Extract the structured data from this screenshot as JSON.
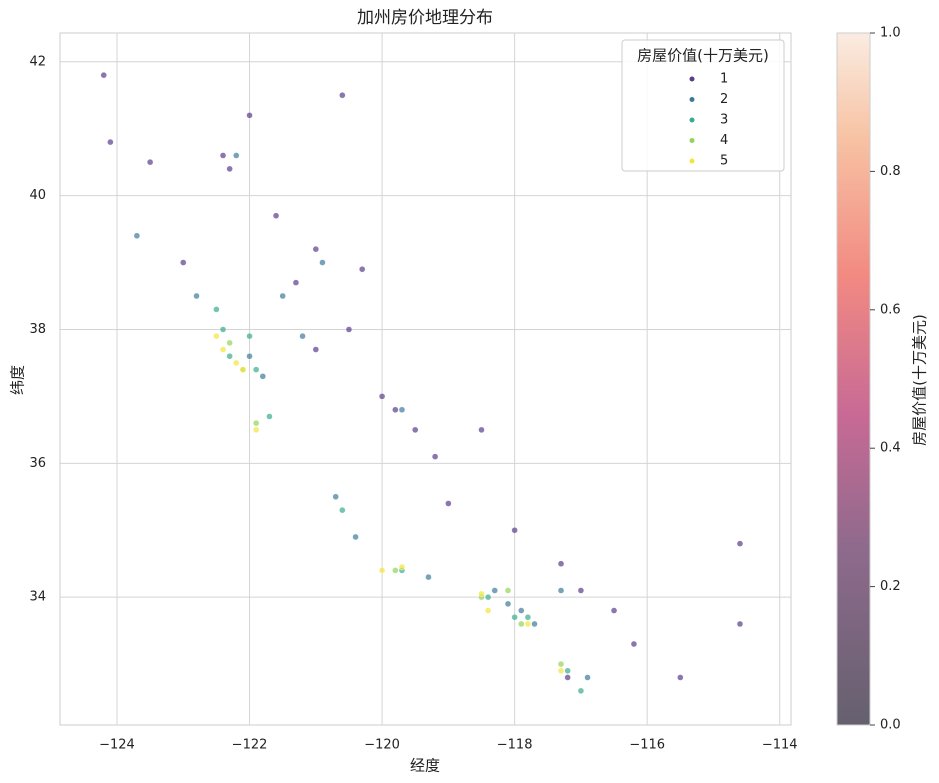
{
  "chart_data": {
    "type": "scatter",
    "title": "加州房价地理分布",
    "x_label": "经度",
    "y_label": "纬度",
    "xlim": [
      -124.86,
      -113.83
    ],
    "ylim": [
      32.09,
      42.43
    ],
    "xticks": [
      {
        "value": -124,
        "label": "−124"
      },
      {
        "value": -122,
        "label": "−122"
      },
      {
        "value": -120,
        "label": "−120"
      },
      {
        "value": -118,
        "label": "−118"
      },
      {
        "value": -116,
        "label": "−116"
      },
      {
        "value": -114,
        "label": "−114"
      }
    ],
    "yticks": [
      34,
      36,
      38,
      40,
      42
    ],
    "grid": true,
    "legend_title": "房屋价值(十万美元)",
    "legend_position": "upper right",
    "series": [
      {
        "name": "1",
        "color": "#5a3d8a",
        "x": [
          -124.2,
          -124.1,
          -123.5,
          -122.4,
          -122.3,
          -121.6,
          -121.0,
          -121.3,
          -120.5,
          -121.0,
          -120.0,
          -119.8,
          -119.5,
          -119.2,
          -119.0,
          -118.0,
          -117.3,
          -117.0,
          -116.5,
          -116.2,
          -115.5,
          -114.6,
          -114.6,
          -120.6,
          -122.0,
          -123.0,
          -118.5,
          -117.2,
          -120.3
        ],
        "y": [
          41.8,
          40.8,
          40.5,
          40.6,
          40.4,
          39.7,
          39.2,
          38.7,
          38.0,
          37.7,
          37.0,
          36.8,
          36.5,
          36.1,
          35.4,
          35.0,
          34.5,
          34.1,
          33.8,
          33.3,
          32.8,
          33.6,
          34.8,
          41.5,
          41.2,
          39.0,
          36.5,
          32.8,
          38.9
        ]
      },
      {
        "name": "2",
        "color": "#3d7a99",
        "x": [
          -123.7,
          -122.8,
          -122.0,
          -121.5,
          -121.2,
          -121.8,
          -120.9,
          -119.7,
          -118.3,
          -118.1,
          -117.9,
          -117.3,
          -116.9,
          -120.4,
          -120.7,
          -119.3,
          -117.7,
          -122.2
        ],
        "y": [
          39.4,
          38.5,
          37.6,
          38.5,
          37.9,
          37.3,
          39.0,
          36.8,
          34.1,
          33.9,
          33.8,
          34.1,
          32.8,
          34.9,
          35.5,
          34.3,
          33.6,
          40.6
        ]
      },
      {
        "name": "3",
        "color": "#3aab8e",
        "x": [
          -122.5,
          -122.0,
          -121.9,
          -122.3,
          -121.7,
          -120.6,
          -118.4,
          -118.0,
          -117.2,
          -119.7,
          -117.8,
          -122.4,
          -117.0
        ],
        "y": [
          38.3,
          37.9,
          37.4,
          37.6,
          36.7,
          35.3,
          34.0,
          33.7,
          32.9,
          34.4,
          33.7,
          38.0,
          32.6
        ]
      },
      {
        "name": "4",
        "color": "#93d35a",
        "x": [
          -122.3,
          -122.1,
          -121.9,
          -118.5,
          -117.9,
          -117.3,
          -119.8,
          -118.1
        ],
        "y": [
          37.8,
          37.4,
          36.6,
          34.0,
          33.6,
          33.0,
          34.4,
          34.1
        ]
      },
      {
        "name": "5",
        "color": "#f4e53b",
        "x": [
          -122.4,
          -122.2,
          -122.1,
          -121.9,
          -118.5,
          -118.4,
          -117.8,
          -117.3,
          -120.0,
          -119.7,
          -122.5
        ],
        "y": [
          37.7,
          37.5,
          37.4,
          36.5,
          34.05,
          33.8,
          33.6,
          32.9,
          34.4,
          34.45,
          37.9
        ]
      }
    ],
    "colorbar": {
      "label": "房屋价值(十万美元)",
      "lim": [
        0,
        1
      ],
      "ticks": [
        {
          "value": 0,
          "label": "0.0"
        },
        {
          "value": 0.2,
          "label": "0.2"
        },
        {
          "value": 0.4,
          "label": "0.4"
        },
        {
          "value": 0.6,
          "label": "0.6"
        },
        {
          "value": 0.8,
          "label": "0.8"
        },
        {
          "value": 1,
          "label": "1.0"
        }
      ]
    }
  }
}
